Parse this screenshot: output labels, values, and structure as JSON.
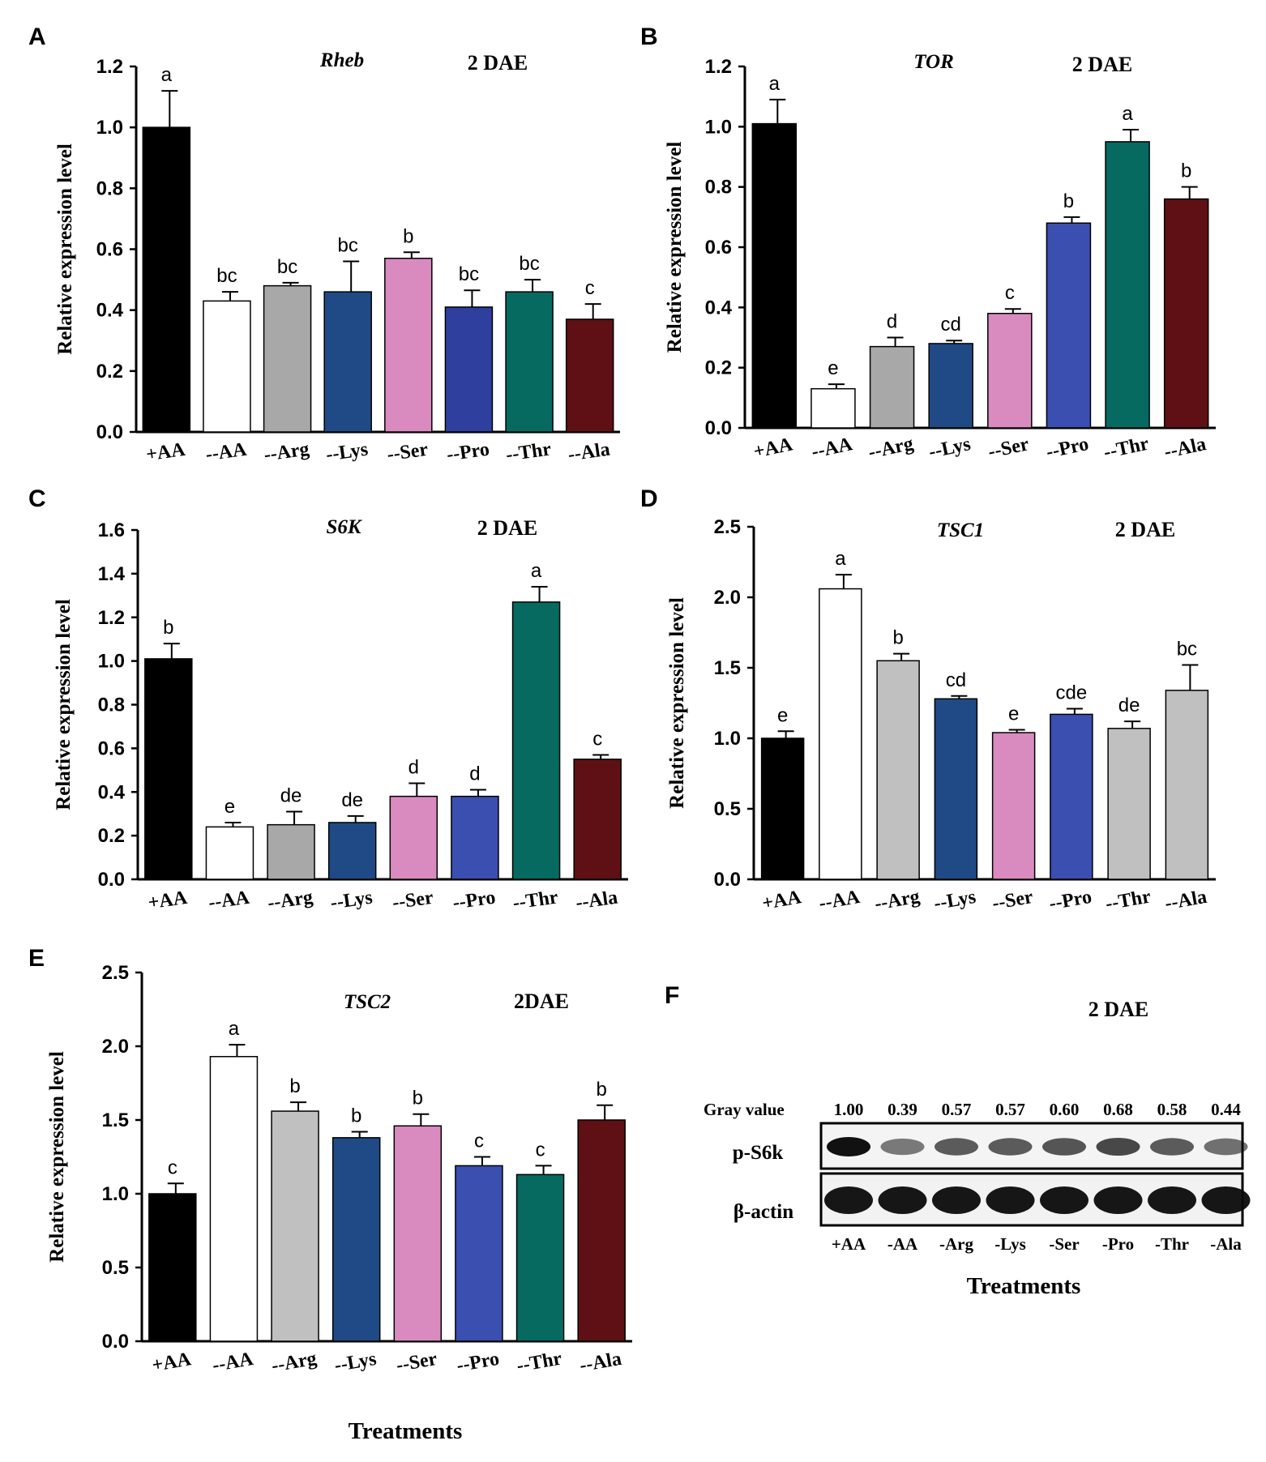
{
  "chart_data": [
    {
      "panel": "A",
      "type": "bar",
      "gene": "Rheb",
      "day_label": "2 DAE",
      "ylabel": "Relative expression level",
      "ylim": [
        0,
        1.2
      ],
      "yticks": [
        "0.0",
        "0.2",
        "0.4",
        "0.6",
        "0.8",
        "1.0",
        "1.2"
      ],
      "categories": [
        "+AA",
        "--AA",
        "--Arg",
        "--Lys",
        "--Ser",
        "--Pro",
        "--Thr",
        "--Ala"
      ],
      "values": [
        1.0,
        0.43,
        0.48,
        0.46,
        0.57,
        0.41,
        0.46,
        0.37
      ],
      "errors": [
        0.12,
        0.03,
        0.01,
        0.1,
        0.02,
        0.055,
        0.04,
        0.05
      ],
      "letters": [
        "a",
        "bc",
        "bc",
        "bc",
        "b",
        "bc",
        "bc",
        "c"
      ],
      "colors": [
        "#000000",
        "#ffffff",
        "#a8a8a8",
        "#1f4a86",
        "#d98bc0",
        "#2f3f9e",
        "#066a60",
        "#5e1014"
      ]
    },
    {
      "panel": "B",
      "type": "bar",
      "gene": "TOR",
      "day_label": "2 DAE",
      "ylabel": "Relative expression level",
      "ylim": [
        0,
        1.2
      ],
      "yticks": [
        "0.0",
        "0.2",
        "0.4",
        "0.6",
        "0.8",
        "1.0",
        "1.2"
      ],
      "categories": [
        "+AA",
        "--AA",
        "--Arg",
        "--Lys",
        "--Ser",
        "--Pro",
        "--Thr",
        "--Ala"
      ],
      "values": [
        1.01,
        0.13,
        0.27,
        0.28,
        0.38,
        0.68,
        0.95,
        0.76
      ],
      "errors": [
        0.08,
        0.015,
        0.03,
        0.01,
        0.015,
        0.02,
        0.04,
        0.04
      ],
      "letters": [
        "a",
        "e",
        "d",
        "cd",
        "c",
        "b",
        "a",
        "b"
      ],
      "colors": [
        "#000000",
        "#ffffff",
        "#a8a8a8",
        "#1f4a86",
        "#d98bc0",
        "#3a4fb0",
        "#066a60",
        "#5e1014"
      ]
    },
    {
      "panel": "C",
      "type": "bar",
      "gene": "S6K",
      "day_label": "2 DAE",
      "ylabel": "Relative expression level",
      "ylim": [
        0,
        1.6
      ],
      "yticks": [
        "0.0",
        "0.2",
        "0.4",
        "0.6",
        "0.8",
        "1.0",
        "1.2",
        "1.4",
        "1.6"
      ],
      "categories": [
        "+AA",
        "--AA",
        "--Arg",
        "--Lys",
        "--Ser",
        "--Pro",
        "--Thr",
        "--Ala"
      ],
      "values": [
        1.01,
        0.24,
        0.25,
        0.26,
        0.38,
        0.38,
        1.27,
        0.55
      ],
      "errors": [
        0.07,
        0.02,
        0.06,
        0.03,
        0.06,
        0.03,
        0.07,
        0.02
      ],
      "letters": [
        "b",
        "e",
        "de",
        "de",
        "d",
        "d",
        "a",
        "c"
      ],
      "colors": [
        "#000000",
        "#ffffff",
        "#a8a8a8",
        "#1f4a86",
        "#d98bc0",
        "#3a4fb0",
        "#066a60",
        "#5e1014"
      ]
    },
    {
      "panel": "D",
      "type": "bar",
      "gene": "TSC1",
      "day_label": "2 DAE",
      "ylabel": "Relative expression level",
      "ylim": [
        0,
        2.5
      ],
      "yticks": [
        "0.0",
        "0.5",
        "1.0",
        "1.5",
        "2.0",
        "2.5"
      ],
      "categories": [
        "+AA",
        "--AA",
        "--Arg",
        "--Lys",
        "--Ser",
        "--Pro",
        "--Thr",
        "--Ala"
      ],
      "values": [
        1.0,
        2.06,
        1.55,
        1.28,
        1.04,
        1.17,
        1.07,
        1.34
      ],
      "errors": [
        0.05,
        0.1,
        0.05,
        0.02,
        0.02,
        0.04,
        0.05,
        0.18
      ],
      "letters": [
        "e",
        "a",
        "b",
        "cd",
        "e",
        "cde",
        "de",
        "bc"
      ],
      "colors": [
        "#000000",
        "#ffffff",
        "#c0c0c0",
        "#1f4a86",
        "#d98bc0",
        "#3a4fb0",
        "#c0c0c0",
        "#c0c0c0"
      ]
    },
    {
      "panel": "E",
      "type": "bar",
      "gene": "TSC2",
      "day_label": "2DAE",
      "ylabel": "Relative expression level",
      "xlabel": "Treatments",
      "ylim": [
        0,
        2.5
      ],
      "yticks": [
        "0.0",
        "0.5",
        "1.0",
        "1.5",
        "2.0",
        "2.5"
      ],
      "categories": [
        "+AA",
        "--AA",
        "--Arg",
        "--Lys",
        "--Ser",
        "--Pro",
        "--Thr",
        "--Ala"
      ],
      "values": [
        1.0,
        1.93,
        1.56,
        1.38,
        1.46,
        1.19,
        1.13,
        1.5
      ],
      "errors": [
        0.07,
        0.08,
        0.06,
        0.04,
        0.08,
        0.06,
        0.06,
        0.1
      ],
      "letters": [
        "c",
        "a",
        "b",
        "b",
        "b",
        "c",
        "c",
        "b"
      ],
      "colors": [
        "#000000",
        "#ffffff",
        "#c0c0c0",
        "#1f4a86",
        "#d98bc0",
        "#3a4fb0",
        "#066a60",
        "#5e1014"
      ]
    }
  ],
  "blot": {
    "panel": "F",
    "day_label": "2 DAE",
    "gray_value_label": "Gray value",
    "gray_values": [
      "1.00",
      "0.39",
      "0.57",
      "0.57",
      "0.60",
      "0.68",
      "0.58",
      "0.44"
    ],
    "row_labels": [
      "p-S6k",
      "β-actin"
    ],
    "lanes": [
      "+AA",
      "-AA",
      "-Arg",
      "-Lys",
      "-Ser",
      "-Pro",
      "-Thr",
      "-Ala"
    ],
    "xlabel": "Treatments"
  }
}
